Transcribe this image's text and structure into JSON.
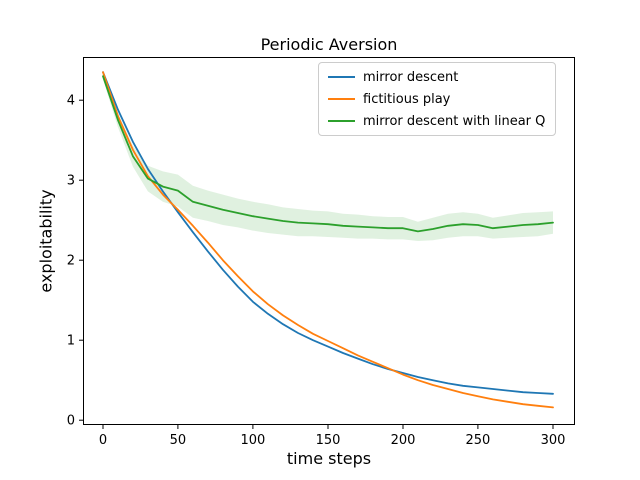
{
  "chart_data": {
    "type": "line",
    "title": "Periodic Aversion",
    "xlabel": "time steps",
    "ylabel": "exploitability",
    "xlim": [
      -13.3,
      314.7
    ],
    "ylim": [
      -0.06,
      4.54
    ],
    "xticks": [
      0,
      50,
      100,
      150,
      200,
      250,
      300
    ],
    "yticks": [
      0,
      1,
      2,
      3,
      4
    ],
    "grid": false,
    "legend_position": "upper right",
    "background": "#ffffff",
    "x": [
      0,
      10,
      20,
      30,
      40,
      50,
      60,
      70,
      80,
      90,
      100,
      110,
      120,
      130,
      140,
      150,
      160,
      170,
      180,
      190,
      200,
      210,
      220,
      230,
      240,
      250,
      260,
      270,
      280,
      290,
      300
    ],
    "series": [
      {
        "name": "mirror descent",
        "color": "#1f77b4",
        "values": [
          4.35,
          3.88,
          3.48,
          3.14,
          2.86,
          2.6,
          2.35,
          2.11,
          1.88,
          1.67,
          1.48,
          1.33,
          1.2,
          1.09,
          1.0,
          0.92,
          0.84,
          0.77,
          0.7,
          0.64,
          0.59,
          0.54,
          0.5,
          0.46,
          0.43,
          0.41,
          0.39,
          0.37,
          0.35,
          0.34,
          0.33
        ]
      },
      {
        "name": "fictitious play",
        "color": "#ff7f0e",
        "values": [
          4.35,
          3.8,
          3.38,
          3.05,
          2.82,
          2.63,
          2.43,
          2.22,
          2.0,
          1.8,
          1.61,
          1.45,
          1.31,
          1.19,
          1.08,
          0.99,
          0.9,
          0.81,
          0.73,
          0.65,
          0.57,
          0.5,
          0.44,
          0.39,
          0.34,
          0.3,
          0.26,
          0.23,
          0.2,
          0.18,
          0.16
        ]
      },
      {
        "name": "mirror descent with linear Q",
        "color": "#2ca02c",
        "values": [
          4.3,
          3.75,
          3.3,
          3.02,
          2.92,
          2.87,
          2.73,
          2.68,
          2.63,
          2.59,
          2.55,
          2.52,
          2.49,
          2.47,
          2.46,
          2.45,
          2.43,
          2.42,
          2.41,
          2.4,
          2.4,
          2.36,
          2.39,
          2.43,
          2.45,
          2.44,
          2.4,
          2.42,
          2.44,
          2.45,
          2.47
        ],
        "band_delta": [
          0.04,
          0.09,
          0.13,
          0.16,
          0.19,
          0.2,
          0.2,
          0.19,
          0.19,
          0.18,
          0.18,
          0.18,
          0.17,
          0.17,
          0.16,
          0.16,
          0.15,
          0.15,
          0.14,
          0.14,
          0.14,
          0.12,
          0.14,
          0.15,
          0.15,
          0.14,
          0.13,
          0.14,
          0.15,
          0.15,
          0.14
        ],
        "band_opacity": 0.15
      }
    ]
  }
}
